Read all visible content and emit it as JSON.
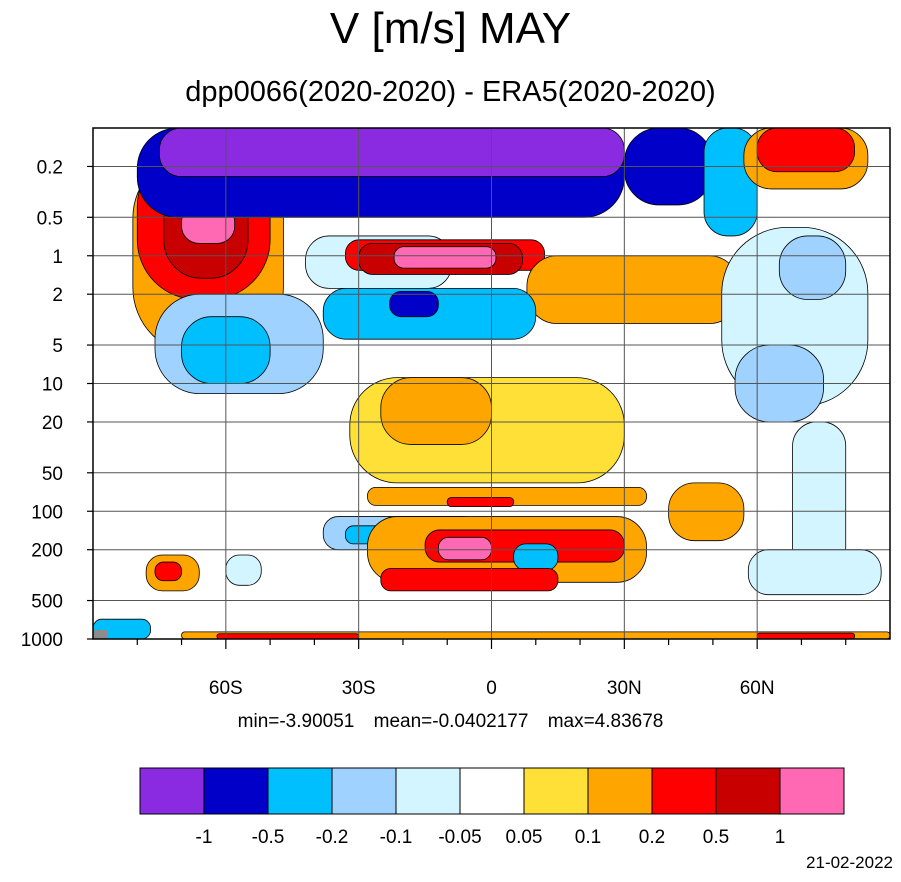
{
  "title": "V [m/s] MAY",
  "subtitle": "dpp0066(2020-2020) - ERA5(2020-2020)",
  "stats": {
    "min": "min=-3.90051",
    "mean": "mean=-0.0402177",
    "max": "max=4.83678"
  },
  "date": "21-02-2022",
  "chart_data": {
    "type": "heatmap",
    "title": "V [m/s] MAY",
    "subtitle": "dpp0066(2020-2020) - ERA5(2020-2020)",
    "xlabel": "",
    "ylabel": "",
    "x_range": [
      -90,
      90
    ],
    "y_range": [
      0.1,
      1000
    ],
    "y_scale": "log",
    "y_inverted": true,
    "x_ticks": [
      {
        "value": -60,
        "label": "60S"
      },
      {
        "value": -30,
        "label": "30S"
      },
      {
        "value": 0,
        "label": "0"
      },
      {
        "value": 30,
        "label": "30N"
      },
      {
        "value": 60,
        "label": "60N"
      }
    ],
    "y_ticks": [
      {
        "value": 0.2,
        "label": "0.2"
      },
      {
        "value": 0.5,
        "label": "0.5"
      },
      {
        "value": 1,
        "label": "1"
      },
      {
        "value": 2,
        "label": "2"
      },
      {
        "value": 5,
        "label": "5"
      },
      {
        "value": 10,
        "label": "10"
      },
      {
        "value": 20,
        "label": "20"
      },
      {
        "value": 50,
        "label": "50"
      },
      {
        "value": 100,
        "label": "100"
      },
      {
        "value": 200,
        "label": "200"
      },
      {
        "value": 500,
        "label": "500"
      },
      {
        "value": 1000,
        "label": "1000"
      }
    ],
    "grid": true,
    "levels": [
      -1,
      -0.5,
      -0.2,
      -0.1,
      -0.05,
      0.05,
      0.1,
      0.2,
      0.5,
      1
    ],
    "level_labels": [
      "-1",
      "-0.5",
      "-0.2",
      "-0.1",
      "-0.05",
      "0.05",
      "0.1",
      "0.2",
      "0.5",
      "1"
    ],
    "colors": [
      "#8a2be2",
      "#0000c8",
      "#00bfff",
      "#a0d2ff",
      "#d2f5ff",
      "#ffffff",
      "#ffe036",
      "#ffa500",
      "#ff0000",
      "#c80000",
      "#ff69b4"
    ],
    "legend_position": "bottom",
    "stats": {
      "min": -3.90051,
      "mean": -0.0402177,
      "max": 4.83678
    },
    "regions": [
      {
        "lat": [
          -81,
          -47
        ],
        "p": [
          0.15,
          6
        ],
        "value": 0.15
      },
      {
        "lat": [
          -80,
          -50
        ],
        "p": [
          0.14,
          2.2
        ],
        "value": 0.3
      },
      {
        "lat": [
          -74,
          -55
        ],
        "p": [
          0.16,
          1.5
        ],
        "value": 0.6
      },
      {
        "lat": [
          -70,
          -58
        ],
        "p": [
          0.4,
          0.8
        ],
        "value": 1.4
      },
      {
        "lat": [
          -80,
          30
        ],
        "p": [
          0.1,
          0.5
        ],
        "value": -0.7
      },
      {
        "lat": [
          -75,
          30
        ],
        "p": [
          0.1,
          0.24
        ],
        "value": -1.5
      },
      {
        "lat": [
          30,
          50
        ],
        "p": [
          0.1,
          0.4
        ],
        "value": -0.7
      },
      {
        "lat": [
          48,
          60
        ],
        "p": [
          0.1,
          0.7
        ],
        "value": -0.3
      },
      {
        "lat": [
          57,
          85
        ],
        "p": [
          0.1,
          0.3
        ],
        "value": 0.15
      },
      {
        "lat": [
          60,
          82
        ],
        "p": [
          0.1,
          0.22
        ],
        "value": 0.35
      },
      {
        "lat": [
          -42,
          -9
        ],
        "p": [
          0.7,
          1.8
        ],
        "value": -0.1
      },
      {
        "lat": [
          -33,
          12
        ],
        "p": [
          0.75,
          1.3
        ],
        "value": 0.35
      },
      {
        "lat": [
          -30,
          7
        ],
        "p": [
          0.8,
          1.4
        ],
        "value": 0.7
      },
      {
        "lat": [
          -22,
          1
        ],
        "p": [
          0.85,
          1.25
        ],
        "value": 1.4
      },
      {
        "lat": [
          8,
          56
        ],
        "p": [
          1,
          3.4
        ],
        "value": 0.12
      },
      {
        "lat": [
          -76,
          -38
        ],
        "p": [
          2,
          12
        ],
        "value": -0.12
      },
      {
        "lat": [
          -70,
          -50
        ],
        "p": [
          3,
          10
        ],
        "value": -0.25
      },
      {
        "lat": [
          -38,
          10
        ],
        "p": [
          1.8,
          4.5
        ],
        "value": -0.25
      },
      {
        "lat": [
          -23,
          -12
        ],
        "p": [
          1.9,
          3
        ],
        "value": -0.6
      },
      {
        "lat": [
          -32,
          30
        ],
        "p": [
          9,
          60
        ],
        "value": 0.07
      },
      {
        "lat": [
          -25,
          0
        ],
        "p": [
          9,
          30
        ],
        "value": 0.15
      },
      {
        "lat": [
          52,
          85
        ],
        "p": [
          0.6,
          15
        ],
        "value": -0.07
      },
      {
        "lat": [
          55,
          75
        ],
        "p": [
          5,
          20
        ],
        "value": -0.12
      },
      {
        "lat": [
          65,
          80
        ],
        "p": [
          0.7,
          2.2
        ],
        "value": -0.12
      },
      {
        "lat": [
          68,
          80
        ],
        "p": [
          20,
          300
        ],
        "value": -0.07
      },
      {
        "lat": [
          -28,
          35
        ],
        "p": [
          65,
          90
        ],
        "value": 0.15
      },
      {
        "lat": [
          -10,
          5
        ],
        "p": [
          78,
          92
        ],
        "value": 0.35
      },
      {
        "lat": [
          -38,
          -3
        ],
        "p": [
          110,
          200
        ],
        "value": -0.12
      },
      {
        "lat": [
          -33,
          -10
        ],
        "p": [
          130,
          180
        ],
        "value": -0.3
      },
      {
        "lat": [
          -28,
          35
        ],
        "p": [
          110,
          360
        ],
        "value": 0.15
      },
      {
        "lat": [
          -15,
          30
        ],
        "p": [
          140,
          250
        ],
        "value": 0.35
      },
      {
        "lat": [
          -12,
          0
        ],
        "p": [
          160,
          240
        ],
        "value": 1.2
      },
      {
        "lat": [
          5,
          15
        ],
        "p": [
          180,
          290
        ],
        "value": -0.3
      },
      {
        "lat": [
          -25,
          15
        ],
        "p": [
          280,
          420
        ],
        "value": 0.3
      },
      {
        "lat": [
          40,
          57
        ],
        "p": [
          60,
          170
        ],
        "value": 0.12
      },
      {
        "lat": [
          58,
          88
        ],
        "p": [
          200,
          450
        ],
        "value": -0.1
      },
      {
        "lat": [
          -78,
          -66
        ],
        "p": [
          220,
          420
        ],
        "value": 0.15
      },
      {
        "lat": [
          -76,
          -70
        ],
        "p": [
          250,
          350
        ],
        "value": 0.35
      },
      {
        "lat": [
          -60,
          -52
        ],
        "p": [
          220,
          380
        ],
        "value": -0.1
      },
      {
        "lat": [
          -70,
          90
        ],
        "p": [
          880,
          1000
        ],
        "value": 0.12
      },
      {
        "lat": [
          -62,
          -30
        ],
        "p": [
          910,
          1000
        ],
        "value": 0.3
      },
      {
        "lat": [
          60,
          82
        ],
        "p": [
          900,
          1000
        ],
        "value": 0.3
      },
      {
        "lat": [
          -90,
          -77
        ],
        "p": [
          700,
          1000
        ],
        "value": -0.3
      }
    ]
  }
}
